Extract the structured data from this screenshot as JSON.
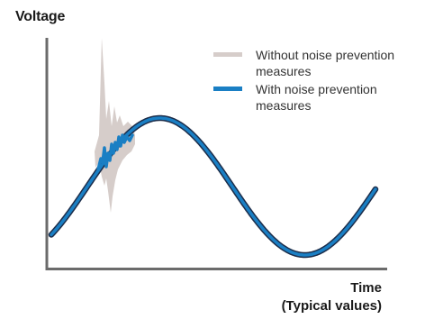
{
  "axes": {
    "y_label": "Voltage",
    "x_label_line1": "Time",
    "x_label_line2": "(Typical values)"
  },
  "legend": {
    "items": [
      {
        "label": "Without noise prevention measures",
        "color": "#d6cdca",
        "icon": "gray-line-swatch"
      },
      {
        "label": "With noise prevention measures",
        "color": "#1a7fc4",
        "icon": "blue-line-swatch"
      }
    ]
  },
  "colors": {
    "axis": "#6b6b6b",
    "signal_outline": "#1c2d4a",
    "signal": "#1a7fc4",
    "noise": "#d6cdca"
  }
}
